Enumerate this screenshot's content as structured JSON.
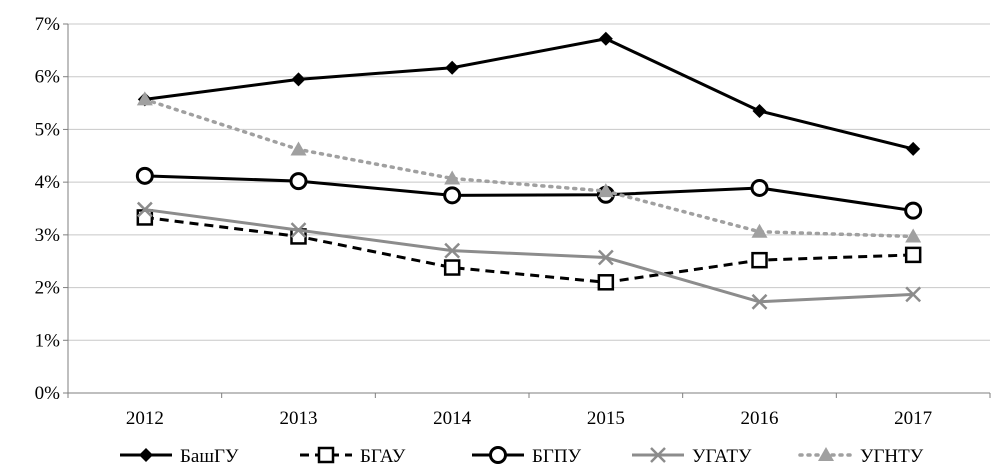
{
  "chart_data": {
    "type": "line",
    "title": "",
    "xlabel": "",
    "ylabel": "",
    "categories": [
      "2012",
      "2013",
      "2014",
      "2015",
      "2016",
      "2017"
    ],
    "y_ticks": [
      0,
      1,
      2,
      3,
      4,
      5,
      6,
      7
    ],
    "y_tick_labels": [
      "0%",
      "1%",
      "2%",
      "3%",
      "4%",
      "5%",
      "6%",
      "7%"
    ],
    "ylim": [
      0,
      7
    ],
    "grid": "horizontal",
    "legend_position": "bottom",
    "series": [
      {
        "name": "БашГУ",
        "values": [
          5.57,
          5.95,
          6.17,
          6.72,
          5.35,
          4.63
        ],
        "color": "#000000",
        "line_style": "solid",
        "marker": "diamond"
      },
      {
        "name": "БГАУ",
        "values": [
          3.33,
          2.97,
          2.38,
          2.1,
          2.52,
          2.62
        ],
        "color": "#000000",
        "line_style": "dashed",
        "marker": "square-open"
      },
      {
        "name": "БГПУ",
        "values": [
          4.12,
          4.02,
          3.75,
          3.76,
          3.89,
          3.46
        ],
        "color": "#000000",
        "line_style": "solid",
        "marker": "circle-open"
      },
      {
        "name": "УГАТУ",
        "values": [
          3.48,
          3.09,
          2.7,
          2.57,
          1.73,
          1.87
        ],
        "color": "#8c8c8c",
        "line_style": "solid",
        "marker": "x"
      },
      {
        "name": "УГНТУ",
        "values": [
          5.57,
          4.62,
          4.07,
          3.83,
          3.06,
          2.97
        ],
        "color": "#a0a0a0",
        "line_style": "dotted",
        "marker": "triangle"
      }
    ]
  }
}
